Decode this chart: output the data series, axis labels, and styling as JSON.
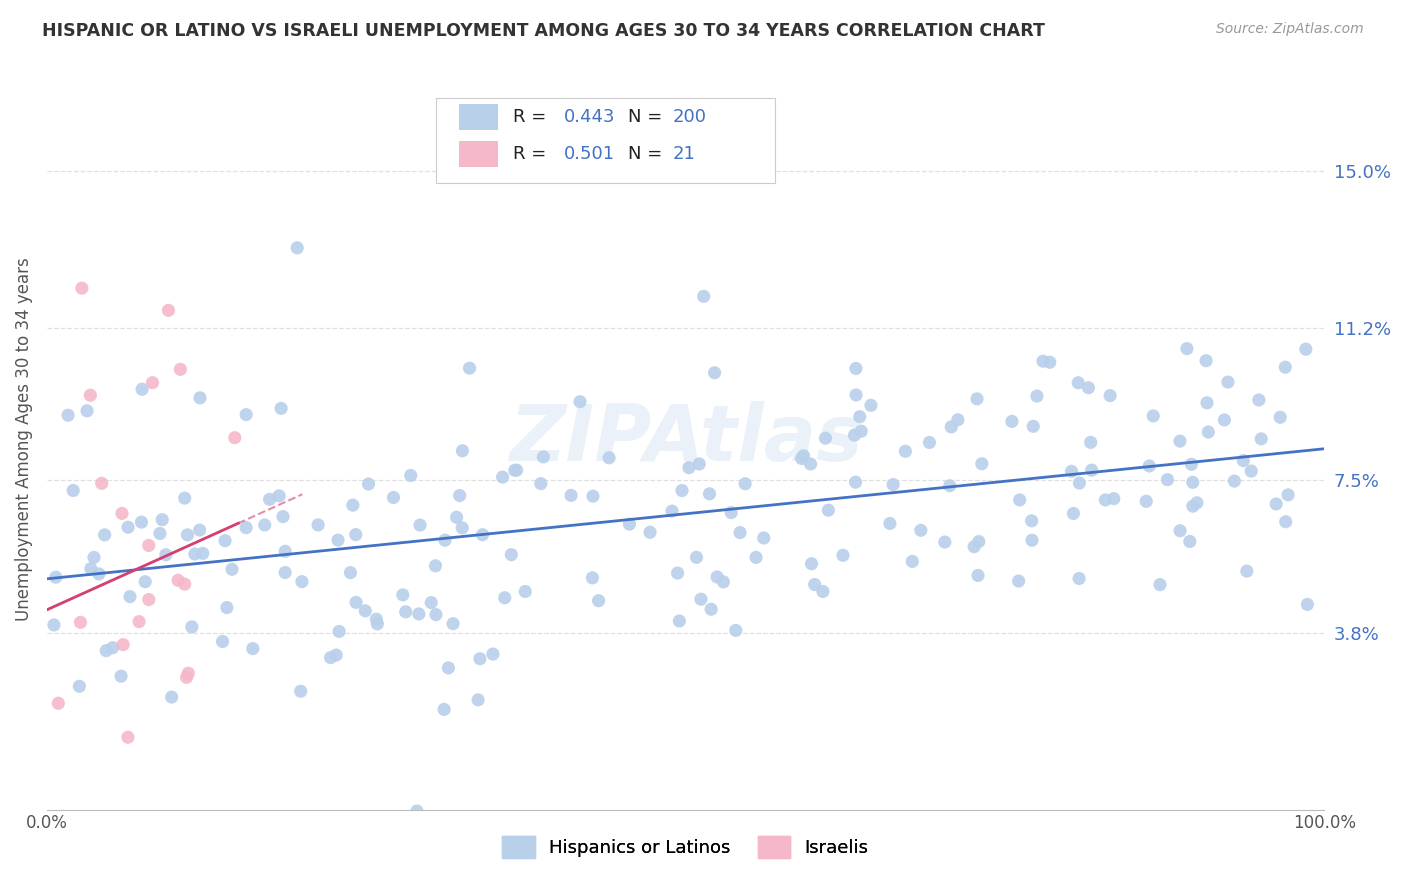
{
  "title": "HISPANIC OR LATINO VS ISRAELI UNEMPLOYMENT AMONG AGES 30 TO 34 YEARS CORRELATION CHART",
  "source": "Source: ZipAtlas.com",
  "ylabel": "Unemployment Among Ages 30 to 34 years",
  "yticks": [
    0.038,
    0.075,
    0.112,
    0.15
  ],
  "ytick_labels": [
    "3.8%",
    "7.5%",
    "11.2%",
    "15.0%"
  ],
  "watermark": "ZIPAtlas",
  "blue_scatter_color": "#b8d0ea",
  "pink_scatter_color": "#f4b8c8",
  "blue_line_color": "#4472c4",
  "pink_line_color": "#d44070",
  "title_color": "#333333",
  "ytick_label_color": "#4472c4",
  "source_color": "#999999",
  "background_color": "#ffffff",
  "grid_color": "#e0e0e0",
  "seed": 42,
  "n_blue": 200,
  "n_pink": 21,
  "R_blue": 0.443,
  "R_pink": 0.501,
  "xlim": [
    0.0,
    1.0
  ],
  "ylim": [
    -0.005,
    0.175
  ]
}
